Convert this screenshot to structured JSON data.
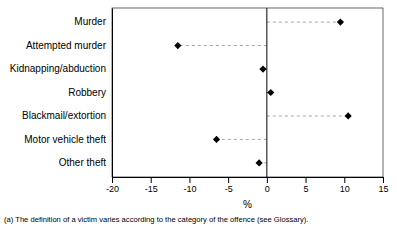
{
  "chart_data": {
    "type": "lollipop",
    "orientation": "horizontal",
    "categories": [
      "Murder",
      "Attempted murder",
      "Kidnapping/abduction",
      "Robbery",
      "Blackmail/extortion",
      "Motor vehicle theft",
      "Other theft"
    ],
    "values": [
      9.5,
      -11.5,
      -0.5,
      0.5,
      10.5,
      -6.5,
      -1.0
    ],
    "color": "#000000",
    "xlim": [
      -20,
      15
    ],
    "xticks": [
      -20,
      -15,
      -10,
      -5,
      0,
      5,
      10,
      15
    ],
    "xlabel": "%",
    "footnote": "(a) The definition of a victim varies according to the category of the offence (see Glossary).",
    "grid": false
  }
}
